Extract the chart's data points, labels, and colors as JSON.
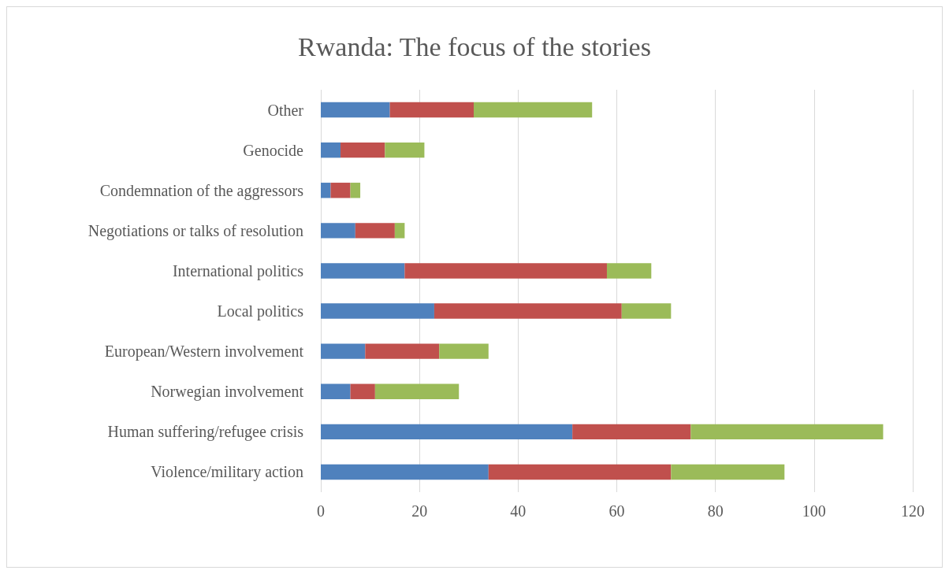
{
  "chart_data": {
    "type": "bar",
    "title": "Rwanda: The focus of the stories",
    "orientation": "horizontal",
    "stacked": true,
    "grid": "x",
    "categories": [
      "Other",
      "Genocide",
      "Condemnation of the aggressors",
      "Negotiations or talks of resolution",
      "International politics",
      "Local politics",
      "European/Western involvement",
      "Norwegian involvement",
      "Human suffering/refugee crisis",
      "Violence/military action"
    ],
    "series": [
      {
        "color": "#4f81bd",
        "values": [
          14,
          4,
          2,
          7,
          17,
          23,
          9,
          6,
          51,
          34
        ]
      },
      {
        "color": "#c0504d",
        "values": [
          17,
          9,
          4,
          8,
          41,
          38,
          15,
          5,
          24,
          37
        ]
      },
      {
        "color": "#9bbb59",
        "values": [
          24,
          8,
          2,
          2,
          9,
          10,
          10,
          17,
          39,
          23
        ]
      }
    ],
    "xlim": [
      0,
      120
    ],
    "xticks": [
      0,
      20,
      40,
      60,
      80,
      100,
      120
    ]
  }
}
